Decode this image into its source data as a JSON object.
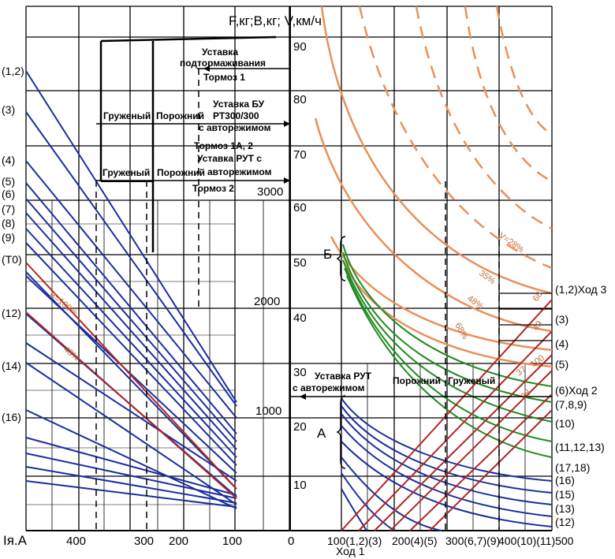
{
  "axis_title_top": "F,кг;В,кг; V,км/ч",
  "axis_current": "Iя.А",
  "axis_hod1": "Ход 1",
  "v_ticks": [
    "90",
    "80",
    "70",
    "60",
    "50",
    "40",
    "30",
    "20",
    "10"
  ],
  "f_ticks": [
    "3000",
    "2000",
    "1000"
  ],
  "zero": "0",
  "i_ticks": [
    "400",
    "300",
    "200",
    "100"
  ],
  "right_x_ticks": [
    "100(1,2)(3)",
    "200(4)(5)",
    "300(6,7)(9)",
    "400(10)(11)500"
  ],
  "left_pos": [
    "(1,2)",
    "(3)",
    "(4)",
    "(5)",
    "(6)",
    "(7)",
    "(8)",
    "(9)",
    "(T0)",
    "(12)",
    "(14)",
    "(16)"
  ],
  "right_pos": [
    "(1,2)Ход 3",
    "(3)",
    "(4)",
    "(5)",
    "(6)Ход 2",
    "(7,8,9)",
    "(10)",
    "(11,12,13)",
    "(17,18)",
    "(16)",
    "(15)",
    "(13)",
    "(12)"
  ],
  "brake": {
    "ustavka_podt": "Уставка",
    "ustavka_podt2": "подтормаживания",
    "tormoz1": "Тормоз 1",
    "ustavka_bu": "Уставка БУ",
    "rt": "РТ300/300",
    "s_avtorezh": "с авторежимом",
    "tormoz1a2": "Тормоз 1А, 2",
    "ustavka_rut": "Уставка РУТ с",
    "avtorezhimom": "авторежимом",
    "tormoz2": "Тормоз 2",
    "gruzheny": "Груженый",
    "porozhny": "Порожний"
  },
  "lower_rut": {
    "line1": "Уставка РУТ",
    "line2": "с авторежимом",
    "porozhny": "Порожний",
    "gruzheny": "Груженый"
  },
  "markers": {
    "B": "Б",
    "A": "А"
  },
  "pct_labels": {
    "v28": "V=28%",
    "p35": "35%",
    "p48": "48%",
    "p68": "68%",
    "r68": "68",
    "r49": "49",
    "r100": "100",
    "r37": "37",
    "r28": "28",
    "b100": "В=100%",
    "b48": "48%"
  },
  "colors": {
    "blue": "#1a2f9e",
    "red": "#b22626",
    "green": "#1f8a1f",
    "orange": "#e8905a",
    "grid": "#000000"
  },
  "chart_data": {
    "type": "line",
    "left_axis": "Iя.А",
    "right_axis": "Ход 1",
    "v_range": [
      0,
      95
    ],
    "f_ticks": [
      1000,
      2000,
      3000
    ]
  }
}
